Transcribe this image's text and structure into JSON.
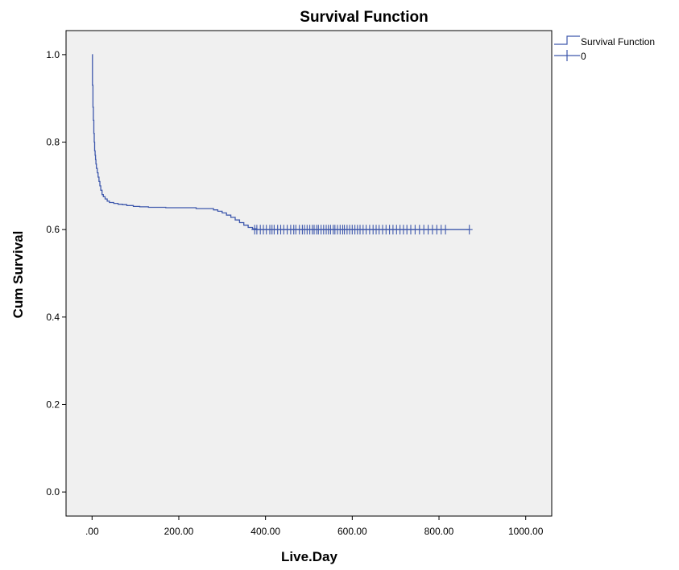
{
  "chart_data": {
    "type": "line",
    "title": "Survival Function",
    "xlabel": "Live.Day",
    "ylabel": "Cum Survival",
    "xlim": [
      -60,
      1060
    ],
    "ylim": [
      -0.055,
      1.055
    ],
    "xticks": [
      0,
      200,
      400,
      600,
      800,
      1000
    ],
    "xtick_labels": [
      ".00",
      "200.00",
      "400.00",
      "600.00",
      "800.00",
      "1000.00"
    ],
    "yticks": [
      0.0,
      0.2,
      0.4,
      0.6,
      0.8,
      1.0
    ],
    "ytick_labels": [
      "0.0",
      "0.2",
      "0.4",
      "0.6",
      "0.8",
      "1.0"
    ],
    "grid": false,
    "legend_position": "top-right",
    "colors": {
      "line": "#3e58ac",
      "plot_bg": "#f0f0f0",
      "frame": "#000000"
    },
    "series": [
      {
        "name": "Survival Function",
        "kind": "step",
        "x": [
          0,
          1,
          2,
          3,
          4,
          5,
          6,
          7,
          8,
          9,
          10,
          12,
          14,
          16,
          18,
          20,
          23,
          26,
          30,
          35,
          40,
          50,
          60,
          70,
          80,
          95,
          110,
          130,
          170,
          240,
          280,
          290,
          300,
          310,
          320,
          330,
          340,
          350,
          360,
          370,
          380,
          870
        ],
        "y": [
          1.0,
          0.93,
          0.88,
          0.85,
          0.82,
          0.8,
          0.78,
          0.77,
          0.76,
          0.75,
          0.74,
          0.73,
          0.72,
          0.71,
          0.7,
          0.69,
          0.68,
          0.675,
          0.67,
          0.665,
          0.662,
          0.66,
          0.658,
          0.657,
          0.655,
          0.653,
          0.652,
          0.651,
          0.65,
          0.648,
          0.645,
          0.642,
          0.638,
          0.633,
          0.628,
          0.622,
          0.616,
          0.61,
          0.605,
          0.602,
          0.6,
          0.6
        ]
      },
      {
        "name": "0",
        "kind": "censored",
        "y": 0.6,
        "x": [
          375,
          380,
          388,
          395,
          402,
          410,
          415,
          420,
          428,
          435,
          442,
          450,
          458,
          465,
          470,
          478,
          485,
          490,
          496,
          502,
          508,
          512,
          518,
          522,
          528,
          534,
          540,
          545,
          550,
          556,
          560,
          566,
          572,
          578,
          582,
          588,
          594,
          600,
          606,
          612,
          618,
          625,
          632,
          640,
          648,
          655,
          662,
          670,
          678,
          686,
          694,
          702,
          710,
          718,
          726,
          735,
          745,
          755,
          765,
          775,
          785,
          795,
          805,
          815,
          870
        ]
      }
    ]
  }
}
